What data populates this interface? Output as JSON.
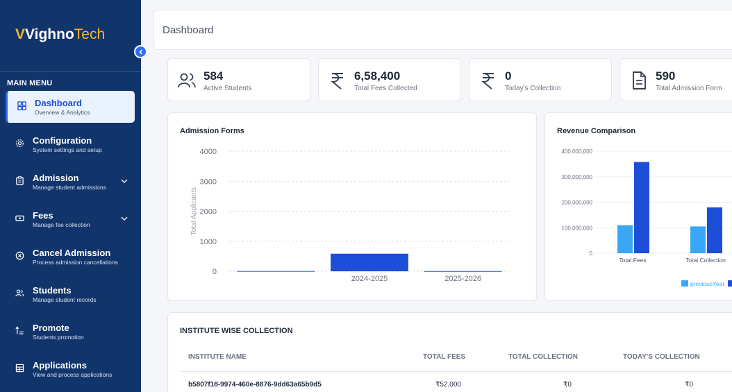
{
  "brand": {
    "mark": "V",
    "name_part1": "Vighno",
    "name_part2": "Tech"
  },
  "sidebar": {
    "heading": "MAIN MENU",
    "items": [
      {
        "title": "Dashboard",
        "sub": "Overview & Analytics",
        "icon": "grid-icon"
      },
      {
        "title": "Configuration",
        "sub": "System settings and setup",
        "icon": "gear-icon"
      },
      {
        "title": "Admission",
        "sub": "Manage student admissions",
        "icon": "clipboard-icon"
      },
      {
        "title": "Fees",
        "sub": "Manage fee collection",
        "icon": "banknote-icon"
      },
      {
        "title": "Cancel Admission",
        "sub": "Process admission cancellations",
        "icon": "x-circle-icon"
      },
      {
        "title": "Students",
        "sub": "Manage student records",
        "icon": "users-icon"
      },
      {
        "title": "Promote",
        "sub": "Students promotion",
        "icon": "promote-icon"
      },
      {
        "title": "Applications",
        "sub": "View and process applications",
        "icon": "table-icon"
      }
    ]
  },
  "header": {
    "title": "Dashboard"
  },
  "stats": [
    {
      "value": "584",
      "label": "Active Students",
      "icon": "users-icon"
    },
    {
      "value": "6,58,400",
      "label": "Total Fees Collected",
      "icon": "rupee-icon"
    },
    {
      "value": "0",
      "label": "Today's Collection",
      "icon": "rupee-icon"
    },
    {
      "value": "590",
      "label": "Total Admission Form",
      "icon": "document-icon"
    }
  ],
  "charts": {
    "admission": {
      "title": "Admission Forms"
    },
    "revenue": {
      "title": "Revenue Comparison"
    }
  },
  "chart_data": [
    {
      "type": "bar",
      "title": "Admission Forms",
      "xlabel": "",
      "ylabel": "Total Applicants",
      "categories": [
        "",
        "2024-2025",
        "2025-2026"
      ],
      "values": [
        8,
        584,
        6
      ],
      "ylim": [
        0,
        4000
      ],
      "yticks": [
        "0",
        "1000",
        "2000",
        "3000",
        "4000"
      ],
      "grid": true,
      "color": "#1d4ed8"
    },
    {
      "type": "bar",
      "title": "Revenue Comparison",
      "categories": [
        "Total Fees",
        "Total Collection"
      ],
      "series": [
        {
          "name": "previousYear",
          "values": [
            110000000,
            105000000
          ],
          "color": "#3ba6f5"
        },
        {
          "name": "",
          "values": [
            358000000,
            180000000
          ],
          "color": "#1d4ed8"
        }
      ],
      "ylim": [
        0,
        400000000
      ],
      "yticks": [
        "0",
        "100,000,000",
        "200,000,000",
        "300,000,000",
        "400,000,000"
      ],
      "grid": true,
      "legend": "bottom"
    }
  ],
  "table": {
    "title": "INSTITUTE WISE COLLECTION",
    "headers": {
      "name": "INSTITUTE NAME",
      "fees": "TOTAL FEES",
      "collection": "TOTAL COLLECTION",
      "today": "TODAY'S COLLECTION"
    },
    "rows": [
      {
        "name": "b5807f18-9974-460e-8876-9dd63a65b9d5",
        "fees": "₹52,000",
        "collection": "₹0",
        "today": "₹0"
      }
    ]
  }
}
